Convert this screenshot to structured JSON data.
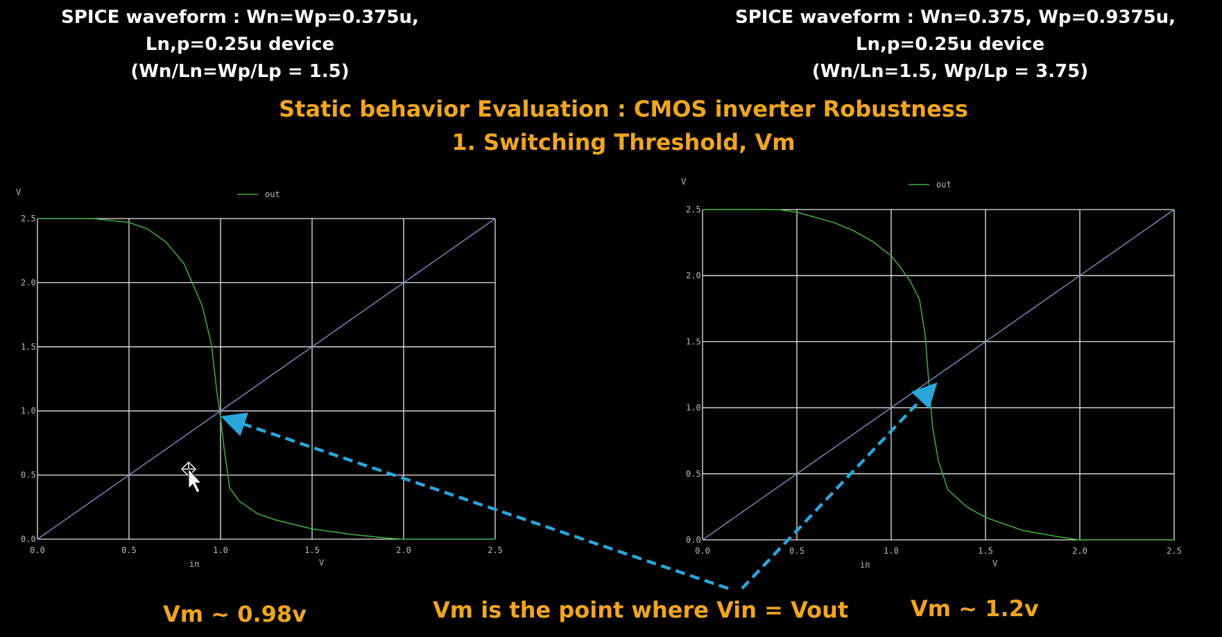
{
  "header_left": {
    "line1": "SPICE waveform : Wn=Wp=0.375u,",
    "line2": "Ln,p=0.25u device",
    "line3": "(Wn/Ln=Wp/Lp = 1.5)"
  },
  "header_right": {
    "line1": "SPICE waveform : Wn=0.375, Wp=0.9375u,",
    "line2": "Ln,p=0.25u device",
    "line3": "(Wn/Ln=1.5, Wp/Lp = 3.75)"
  },
  "title": {
    "line1": "Static behavior Evaluation : CMOS inverter Robustness",
    "line2": "1. Switching Threshold, Vm"
  },
  "annotations": {
    "vm_left": "Vm ~ 0.98v",
    "vm_center": "Vm is the point where Vin = Vout",
    "vm_right": "Vm ~ 1.2v"
  },
  "colors": {
    "accent": "#f0a522",
    "curve": "#3ca83c",
    "diagonal": "#7f8fc8",
    "grid": "#e8e8e8",
    "arrow": "#2aa6dc"
  },
  "chart_data": [
    {
      "type": "line",
      "ylabel": "V",
      "xlabel": "in",
      "xunit": "V",
      "xlim": [
        0,
        2.5
      ],
      "ylim": [
        0,
        2.5
      ],
      "xticks": [
        "0.0",
        "0.5",
        "1.0",
        "1.5",
        "2.0",
        "2.5"
      ],
      "yticks": [
        "0.0",
        "0.5",
        "1.0",
        "1.5",
        "2.0",
        "2.5"
      ],
      "grid": true,
      "legend": "top-center",
      "series": [
        {
          "name": "out",
          "x": [
            0,
            0.3,
            0.5,
            0.6,
            0.7,
            0.8,
            0.9,
            0.95,
            0.98,
            1.0,
            1.02,
            1.05,
            1.1,
            1.2,
            1.3,
            1.5,
            1.7,
            1.9,
            2.0,
            2.5
          ],
          "y": [
            2.5,
            2.5,
            2.47,
            2.42,
            2.32,
            2.15,
            1.82,
            1.52,
            1.15,
            0.95,
            0.7,
            0.4,
            0.3,
            0.2,
            0.15,
            0.08,
            0.04,
            0.01,
            0.0,
            0.0
          ]
        },
        {
          "name": "",
          "x": [
            0,
            2.5
          ],
          "y": [
            0,
            2.5
          ]
        }
      ],
      "vm": 0.98
    },
    {
      "type": "line",
      "ylabel": "V",
      "xlabel": "in",
      "xunit": "V",
      "xlim": [
        0,
        2.5
      ],
      "ylim": [
        0,
        2.5
      ],
      "xticks": [
        "0.0",
        "0.5",
        "1.0",
        "1.5",
        "2.0",
        "2.5"
      ],
      "yticks": [
        "0.0",
        "0.5",
        "1.0",
        "1.5",
        "2.0",
        "2.5"
      ],
      "grid": true,
      "legend": "top-center",
      "series": [
        {
          "name": "out",
          "x": [
            0,
            0.4,
            0.5,
            0.7,
            0.8,
            0.9,
            1.0,
            1.05,
            1.1,
            1.15,
            1.18,
            1.2,
            1.22,
            1.25,
            1.3,
            1.4,
            1.5,
            1.7,
            1.9,
            2.0,
            2.5
          ],
          "y": [
            2.5,
            2.5,
            2.48,
            2.4,
            2.34,
            2.26,
            2.15,
            2.06,
            1.96,
            1.82,
            1.55,
            1.18,
            0.85,
            0.6,
            0.38,
            0.25,
            0.17,
            0.07,
            0.02,
            0.0,
            0.0
          ]
        },
        {
          "name": "",
          "x": [
            0,
            2.5
          ],
          "y": [
            0,
            2.5
          ]
        }
      ],
      "vm": 1.2
    }
  ]
}
